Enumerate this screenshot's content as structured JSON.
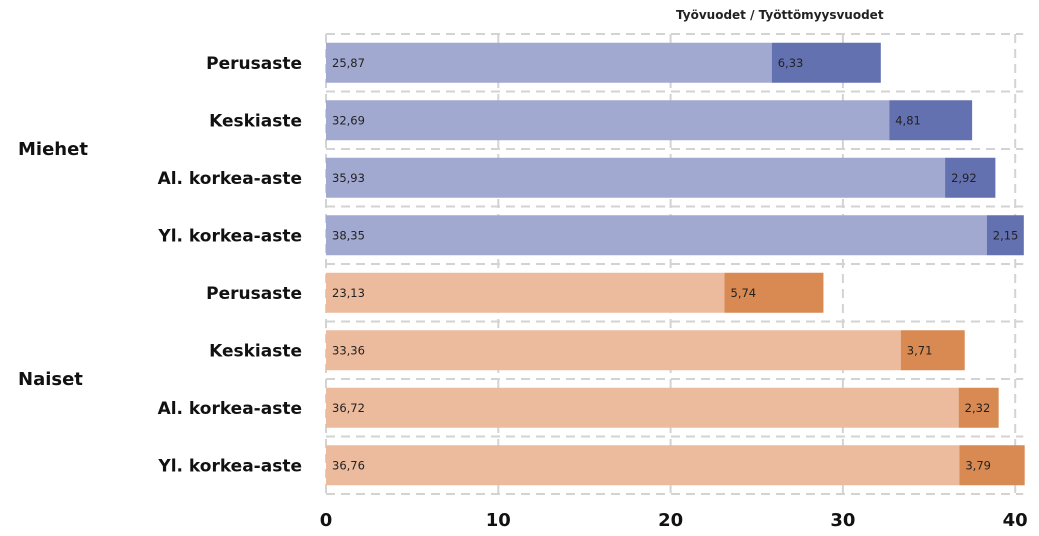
{
  "chart_data": {
    "type": "bar",
    "orientation": "horizontal",
    "stacked": true,
    "title": "Työvuodet / Työttömyysvuodet",
    "groups": [
      {
        "name": "Miehet",
        "categories": [
          "Perusaste",
          "Keskiaste",
          "Al. korkea-aste",
          "Yl. korkea-aste"
        ],
        "values": [
          [
            25.87,
            6.33
          ],
          [
            32.69,
            4.81
          ],
          [
            35.93,
            2.92
          ],
          [
            38.35,
            2.15
          ]
        ],
        "labels": [
          [
            "25,87",
            "6,33"
          ],
          [
            "32,69",
            "4,81"
          ],
          [
            "35,93",
            "2,92"
          ],
          [
            "38,35",
            "2,15"
          ]
        ],
        "colors": [
          "#a2a9d0",
          "#6471b1"
        ]
      },
      {
        "name": "Naiset",
        "categories": [
          "Perusaste",
          "Keskiaste",
          "Al. korkea-aste",
          "Yl. korkea-aste"
        ],
        "values": [
          [
            23.13,
            5.74
          ],
          [
            33.36,
            3.71
          ],
          [
            36.72,
            2.32
          ],
          [
            36.76,
            3.79
          ]
        ],
        "labels": [
          [
            "23,13",
            "5,74"
          ],
          [
            "33,36",
            "3,71"
          ],
          [
            "36,72",
            "2,32"
          ],
          [
            "36,76",
            "3,79"
          ]
        ],
        "colors": [
          "#ecbb9d",
          "#d98952"
        ]
      }
    ],
    "xlim": [
      0,
      40
    ],
    "xticks": [
      "0",
      "10",
      "20",
      "30",
      "40"
    ],
    "grid": true
  }
}
